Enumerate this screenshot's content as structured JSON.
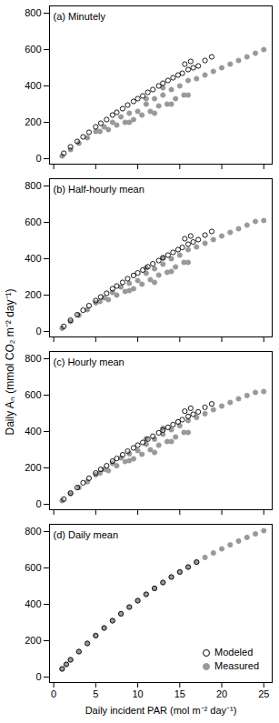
{
  "chart_data": [
    {
      "type": "scatter",
      "title": "(a) Minutely",
      "ylabel": "Daily Aₙ (mmol CO₂ m⁻² day⁻¹)",
      "xlim": [
        -0.5,
        26
      ],
      "xticks": [
        0,
        5,
        10,
        15,
        20,
        25
      ],
      "ylim": [
        -30,
        840
      ],
      "yticks": [
        0,
        200,
        400,
        600,
        800
      ],
      "tick_labels": "y",
      "series": [
        {
          "name": "Modeled",
          "color": "#000000",
          "marker": "open circle",
          "x": [
            1.2,
            2,
            2.8,
            3.5,
            4.2,
            5,
            5.6,
            6.3,
            7,
            7.5,
            8.2,
            8.8,
            9.5,
            10,
            10.6,
            11.2,
            11.8,
            12.5,
            13,
            13.6,
            14.2,
            14.8,
            15.3,
            16,
            16.6,
            17.2,
            18,
            18.8,
            15.6,
            16.3
          ],
          "values": [
            30,
            65,
            95,
            120,
            145,
            175,
            195,
            215,
            240,
            255,
            275,
            295,
            315,
            330,
            345,
            365,
            380,
            400,
            415,
            430,
            445,
            460,
            470,
            490,
            500,
            510,
            540,
            560,
            520,
            535
          ]
        },
        {
          "name": "Measured",
          "color": "#999999",
          "marker": "filled circle",
          "x": [
            1,
            2,
            3,
            4,
            5,
            5.5,
            6,
            6.5,
            7,
            7.5,
            8,
            8.5,
            9,
            9.5,
            10,
            10.5,
            11,
            11.5,
            12,
            12.5,
            13,
            13.5,
            14,
            14.5,
            15,
            15.5,
            16,
            17,
            18,
            19,
            20,
            21,
            22,
            23,
            24,
            25,
            9,
            12,
            14,
            16,
            11,
            13
          ],
          "values": [
            15,
            50,
            85,
            115,
            150,
            150,
            175,
            160,
            200,
            185,
            230,
            200,
            250,
            215,
            260,
            240,
            300,
            260,
            330,
            290,
            350,
            300,
            380,
            330,
            400,
            350,
            430,
            440,
            460,
            480,
            500,
            520,
            540,
            560,
            580,
            600,
            200,
            250,
            300,
            350,
            330,
            390
          ]
        }
      ]
    },
    {
      "type": "scatter",
      "title": "(b) Half-hourly mean",
      "xlim": [
        -0.5,
        26
      ],
      "xticks": [
        0,
        5,
        10,
        15,
        20,
        25
      ],
      "ylim": [
        -30,
        840
      ],
      "yticks": [
        0,
        200,
        400,
        600,
        800
      ],
      "tick_labels": "y",
      "series": [
        {
          "name": "Modeled",
          "color": "#000000",
          "marker": "open circle",
          "x": [
            1.2,
            2,
            2.8,
            3.5,
            4.2,
            5,
            5.6,
            6.3,
            7,
            7.5,
            8.2,
            8.8,
            9.5,
            10,
            10.6,
            11.2,
            11.8,
            12.5,
            13,
            13.6,
            14.2,
            14.8,
            15.3,
            16,
            16.6,
            17.2,
            18,
            18.8,
            15.6,
            16.3
          ],
          "values": [
            28,
            62,
            92,
            117,
            142,
            170,
            190,
            210,
            235,
            250,
            270,
            290,
            308,
            322,
            338,
            356,
            372,
            390,
            405,
            420,
            435,
            450,
            462,
            480,
            492,
            505,
            530,
            550,
            510,
            525
          ]
        },
        {
          "name": "Measured",
          "color": "#999999",
          "marker": "filled circle",
          "x": [
            1,
            2,
            3,
            4,
            5,
            5.5,
            6,
            6.5,
            7,
            7.5,
            8,
            8.5,
            9,
            9.5,
            10,
            10.5,
            11,
            11.5,
            12,
            12.5,
            13,
            13.5,
            14,
            14.5,
            15,
            15.5,
            16,
            17,
            18,
            19,
            20,
            21,
            22,
            23,
            24,
            25,
            9,
            12,
            14,
            16,
            11,
            13
          ],
          "values": [
            18,
            55,
            90,
            120,
            158,
            165,
            185,
            175,
            215,
            200,
            245,
            220,
            265,
            235,
            280,
            260,
            320,
            285,
            345,
            310,
            370,
            325,
            400,
            355,
            420,
            380,
            450,
            465,
            485,
            505,
            525,
            545,
            565,
            585,
            605,
            610,
            225,
            270,
            330,
            380,
            350,
            405
          ]
        }
      ]
    },
    {
      "type": "scatter",
      "title": "(c) Hourly mean",
      "xlim": [
        -0.5,
        26
      ],
      "xticks": [
        0,
        5,
        10,
        15,
        20,
        25
      ],
      "ylim": [
        -30,
        840
      ],
      "yticks": [
        0,
        200,
        400,
        600,
        800
      ],
      "tick_labels": "y",
      "series": [
        {
          "name": "Modeled",
          "color": "#000000",
          "marker": "open circle",
          "x": [
            1.2,
            2,
            2.8,
            3.5,
            4.2,
            5,
            5.6,
            6.3,
            7,
            7.5,
            8.2,
            8.8,
            9.5,
            10,
            10.6,
            11.2,
            11.8,
            12.5,
            13,
            13.6,
            14.2,
            14.8,
            15.3,
            16,
            16.6,
            17.2,
            18,
            18.8,
            15.6,
            16.3
          ],
          "values": [
            28,
            62,
            92,
            118,
            143,
            172,
            192,
            212,
            237,
            252,
            272,
            292,
            310,
            325,
            340,
            358,
            374,
            393,
            408,
            423,
            438,
            453,
            465,
            483,
            495,
            508,
            533,
            552,
            512,
            528
          ]
        },
        {
          "name": "Measured",
          "color": "#999999",
          "marker": "filled circle",
          "x": [
            1,
            2,
            3,
            4,
            5,
            5.5,
            6,
            6.5,
            7,
            7.5,
            8,
            8.5,
            9,
            9.5,
            10,
            10.5,
            11,
            11.5,
            12,
            12.5,
            13,
            13.5,
            14,
            14.5,
            15,
            15.5,
            16,
            17,
            18,
            19,
            20,
            21,
            22,
            23,
            24,
            25,
            9,
            12,
            14,
            16,
            11,
            13
          ],
          "values": [
            20,
            58,
            92,
            124,
            162,
            172,
            192,
            185,
            225,
            212,
            255,
            235,
            278,
            250,
            295,
            275,
            330,
            300,
            358,
            325,
            385,
            345,
            410,
            370,
            432,
            395,
            460,
            478,
            498,
            520,
            540,
            560,
            580,
            598,
            615,
            620,
            240,
            285,
            345,
            395,
            360,
            418
          ]
        }
      ]
    },
    {
      "type": "scatter",
      "title": "(d) Daily mean",
      "xlabel": "Daily incident PAR (mol m⁻² day⁻¹)",
      "xlim": [
        -0.5,
        26
      ],
      "xticks": [
        0,
        5,
        10,
        15,
        20,
        25
      ],
      "ylim": [
        -30,
        840
      ],
      "yticks": [
        0,
        200,
        400,
        600,
        800
      ],
      "legend": "lower right",
      "series": [
        {
          "name": "Modeled",
          "color": "#000000",
          "marker": "open circle",
          "x": [
            1,
            1.5,
            2,
            3,
            4,
            5,
            6,
            7,
            8,
            9,
            10,
            11,
            12,
            13,
            14,
            15,
            16,
            17
          ],
          "values": [
            45,
            70,
            95,
            140,
            185,
            228,
            270,
            310,
            348,
            385,
            420,
            455,
            488,
            520,
            550,
            578,
            605,
            632
          ]
        },
        {
          "name": "Measured",
          "color": "#999999",
          "marker": "filled circle",
          "x": [
            1,
            1.5,
            2,
            3,
            4,
            5,
            6,
            7,
            8,
            9,
            10,
            11,
            12,
            13,
            14,
            15,
            16,
            17,
            18,
            19,
            20,
            21,
            22,
            23,
            24,
            25
          ],
          "values": [
            45,
            70,
            95,
            140,
            185,
            228,
            270,
            310,
            348,
            385,
            420,
            455,
            488,
            520,
            550,
            578,
            605,
            632,
            658,
            682,
            705,
            727,
            748,
            768,
            787,
            805
          ]
        }
      ]
    }
  ]
}
